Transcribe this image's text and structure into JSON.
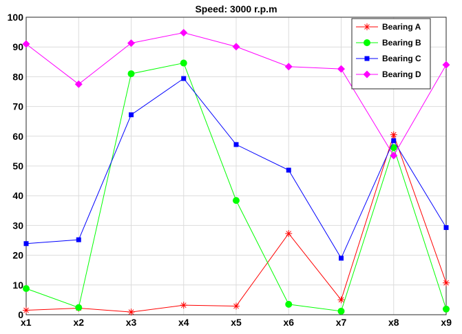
{
  "chart_data": {
    "type": "line",
    "title": "Speed: 3000 r.p.m",
    "xlabel": "",
    "ylabel": "",
    "categories": [
      "x1",
      "x2",
      "x3",
      "x4",
      "x5",
      "x6",
      "x7",
      "x8",
      "x9"
    ],
    "ylim": [
      0,
      100
    ],
    "yticks": [
      0,
      10,
      20,
      30,
      40,
      50,
      60,
      70,
      80,
      90,
      100
    ],
    "grid": true,
    "legend_position": "top-right",
    "series": [
      {
        "name": "Bearing A",
        "color": "#ff0000",
        "marker": "asterisk",
        "values": [
          1.5,
          2.2,
          0.9,
          3.2,
          2.9,
          27.3,
          5.0,
          60.5,
          10.7
        ]
      },
      {
        "name": "Bearing B",
        "color": "#00ff00",
        "marker": "circle",
        "values": [
          8.8,
          2.4,
          81.0,
          84.6,
          38.4,
          3.5,
          1.2,
          56.2,
          1.9
        ]
      },
      {
        "name": "Bearing C",
        "color": "#0000ff",
        "marker": "square",
        "values": [
          23.9,
          25.2,
          67.2,
          79.4,
          57.2,
          48.6,
          19.0,
          58.5,
          29.3
        ]
      },
      {
        "name": "Bearing D",
        "color": "#ff00ff",
        "marker": "diamond",
        "values": [
          91.0,
          77.5,
          91.3,
          94.8,
          90.1,
          83.4,
          82.6,
          53.5,
          84.0
        ]
      }
    ]
  }
}
